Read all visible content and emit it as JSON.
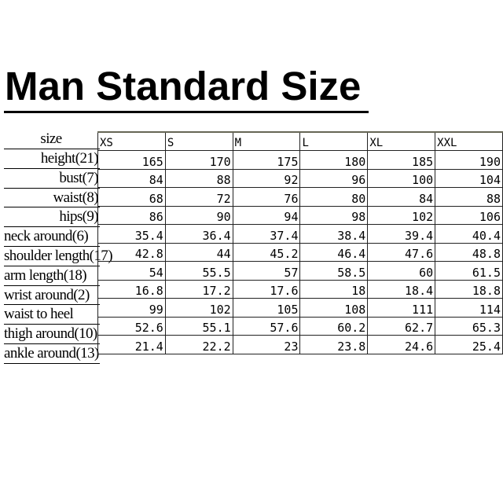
{
  "title": "Man Standard Size",
  "size_label": "size",
  "sizes": [
    "XS",
    "S",
    "M",
    "L",
    "XL",
    "XXL"
  ],
  "rows": [
    {
      "label": "height(21)",
      "values": [
        "165",
        "170",
        "175",
        "180",
        "185",
        "190"
      ]
    },
    {
      "label": "bust(7)",
      "values": [
        "84",
        "88",
        "92",
        "96",
        "100",
        "104"
      ]
    },
    {
      "label": "waist(8)",
      "values": [
        "68",
        "72",
        "76",
        "80",
        "84",
        "88"
      ]
    },
    {
      "label": "hips(9)",
      "values": [
        "86",
        "90",
        "94",
        "98",
        "102",
        "106"
      ]
    },
    {
      "label": "neck around(6)",
      "values": [
        "35.4",
        "36.4",
        "37.4",
        "38.4",
        "39.4",
        "40.4"
      ]
    },
    {
      "label": "shoulder length(17)",
      "values": [
        "42.8",
        "44",
        "45.2",
        "46.4",
        "47.6",
        "48.8"
      ]
    },
    {
      "label": "arm length(18)",
      "values": [
        "54",
        "55.5",
        "57",
        "58.5",
        "60",
        "61.5"
      ]
    },
    {
      "label": "wrist around(2)",
      "values": [
        "16.8",
        "17.2",
        "17.6",
        "18",
        "18.4",
        "18.8"
      ]
    },
    {
      "label": "waist to heel",
      "values": [
        "99",
        "102",
        "105",
        "108",
        "111",
        "114"
      ]
    },
    {
      "label": "thigh around(10)",
      "values": [
        "52.6",
        "55.1",
        "57.6",
        "60.2",
        "62.7",
        "65.3"
      ]
    },
    {
      "label": "ankle around(13)",
      "values": [
        "21.4",
        "22.2",
        "23",
        "23.8",
        "24.6",
        "25.4"
      ]
    }
  ]
}
